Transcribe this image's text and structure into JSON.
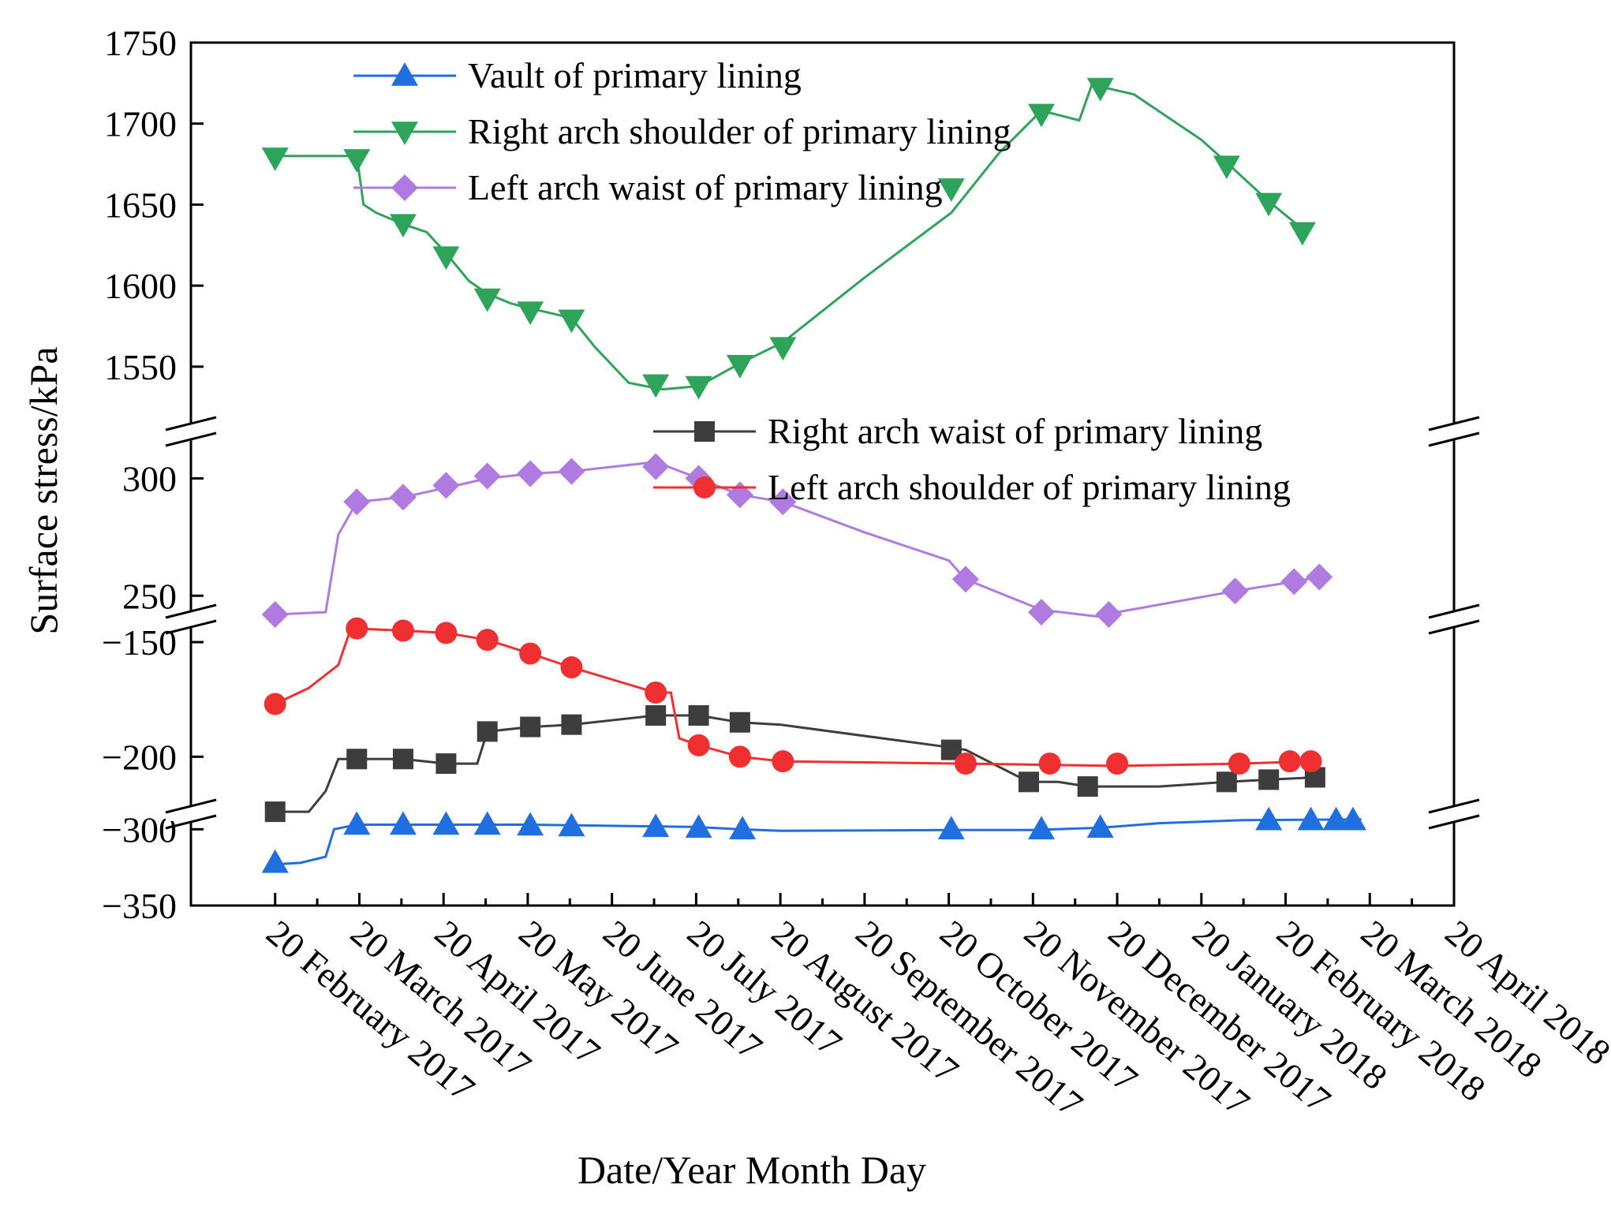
{
  "chart_data": {
    "type": "line",
    "title": "",
    "xlabel": "Date/Year Month Day",
    "ylabel": "Surface stress/kPa",
    "x_ticks": [
      "20 February 2017",
      "20 March 2017",
      "20 April 2017",
      "20 May 2017",
      "20 June 2017",
      "20 July 2017",
      "20 August 2017",
      "20 September 2017",
      "20 October 2017",
      "20 November 2017",
      "20 December 2017",
      "20 January 2018",
      "20 February 2018",
      "20 March 2018",
      "20 April 2018"
    ],
    "x_unit": "month index (0 = 20 February 2017)",
    "xlim": [
      -1,
      14
    ],
    "y_segments": [
      {
        "range": [
          -350,
          -290
        ],
        "ticks": [
          -350,
          -300
        ]
      },
      {
        "range": [
          -225,
          -140
        ],
        "ticks": [
          -200,
          -150
        ]
      },
      {
        "range": [
          240,
          320
        ],
        "ticks": [
          250,
          300
        ]
      },
      {
        "range": [
          1510,
          1750
        ],
        "ticks": [
          1550,
          1600,
          1650,
          1700,
          1750
        ]
      }
    ],
    "y_tick_labels": {
      "-350": "−350",
      "-300": "−300",
      "-200": "−200",
      "-150": "−150",
      "250": "250",
      "300": "300",
      "1550": "1550",
      "1600": "1600",
      "1650": "1650",
      "1700": "1700",
      "1750": "1750"
    },
    "series": [
      {
        "name": "Vault of primary lining",
        "color": "#1f6fe0",
        "marker": "triangle-up",
        "points": [
          [
            0,
            -322
          ],
          [
            0.97,
            -297
          ],
          [
            1.52,
            -297
          ],
          [
            2.03,
            -297
          ],
          [
            2.52,
            -297
          ],
          [
            3.03,
            -297.5
          ],
          [
            3.52,
            -298
          ],
          [
            4.52,
            -298.5
          ],
          [
            5.03,
            -299
          ],
          [
            5.55,
            -300
          ],
          [
            8.03,
            -300
          ],
          [
            9.1,
            -300
          ],
          [
            9.8,
            -299
          ],
          [
            11.8,
            -294
          ],
          [
            12.3,
            -294
          ],
          [
            12.6,
            -294
          ],
          [
            12.8,
            -294
          ]
        ],
        "line": [
          [
            0,
            -323
          ],
          [
            0.3,
            -322
          ],
          [
            0.6,
            -318
          ],
          [
            0.7,
            -300
          ],
          [
            0.97,
            -297
          ],
          [
            3,
            -297
          ],
          [
            5,
            -298.5
          ],
          [
            5.5,
            -300
          ],
          [
            6,
            -301
          ],
          [
            8,
            -300.5
          ],
          [
            9,
            -300.5
          ],
          [
            9.8,
            -299
          ],
          [
            10.5,
            -296
          ],
          [
            11.5,
            -294
          ],
          [
            12.9,
            -293.5
          ]
        ]
      },
      {
        "name": "Right arch shoulder of primary lining",
        "color": "#2ea35a",
        "marker": "triangle-down",
        "points": [
          [
            0,
            1679
          ],
          [
            0.97,
            1678
          ],
          [
            1.52,
            1638
          ],
          [
            2.03,
            1618
          ],
          [
            2.52,
            1592
          ],
          [
            3.03,
            1584
          ],
          [
            3.52,
            1579
          ],
          [
            4.52,
            1539
          ],
          [
            5.03,
            1538
          ],
          [
            5.52,
            1551
          ],
          [
            6.03,
            1562
          ],
          [
            8.03,
            1660
          ],
          [
            9.1,
            1706
          ],
          [
            9.8,
            1722
          ],
          [
            11.3,
            1674
          ],
          [
            11.8,
            1651
          ],
          [
            12.2,
            1633
          ]
        ],
        "line": [
          [
            0,
            1680
          ],
          [
            0.97,
            1680
          ],
          [
            1.05,
            1650
          ],
          [
            1.2,
            1645
          ],
          [
            1.52,
            1638
          ],
          [
            1.8,
            1633
          ],
          [
            2.03,
            1620
          ],
          [
            2.3,
            1603
          ],
          [
            2.52,
            1595
          ],
          [
            2.8,
            1589
          ],
          [
            3.03,
            1586
          ],
          [
            3.52,
            1580
          ],
          [
            3.8,
            1562
          ],
          [
            4.2,
            1540
          ],
          [
            4.6,
            1536
          ],
          [
            5.03,
            1538
          ],
          [
            5.52,
            1552
          ],
          [
            6.03,
            1565
          ],
          [
            7,
            1605
          ],
          [
            8.03,
            1645
          ],
          [
            8.6,
            1682
          ],
          [
            9.1,
            1708
          ],
          [
            9.55,
            1702
          ],
          [
            9.7,
            1724
          ],
          [
            10.2,
            1718
          ],
          [
            11,
            1690
          ],
          [
            11.3,
            1676
          ],
          [
            11.8,
            1652
          ],
          [
            12.2,
            1635
          ]
        ]
      },
      {
        "name": "Left arch waist of primary lining",
        "color": "#b07be0",
        "marker": "diamond",
        "points": [
          [
            0,
            242
          ],
          [
            0.97,
            290
          ],
          [
            1.52,
            292
          ],
          [
            2.03,
            297
          ],
          [
            2.52,
            301
          ],
          [
            3.03,
            302
          ],
          [
            3.52,
            303
          ],
          [
            4.52,
            305
          ],
          [
            5.03,
            300
          ],
          [
            5.52,
            293
          ],
          [
            6.03,
            290
          ],
          [
            8.2,
            257
          ],
          [
            9.1,
            243
          ],
          [
            9.9,
            242
          ],
          [
            11.4,
            252
          ],
          [
            12.1,
            256
          ],
          [
            12.4,
            258
          ]
        ],
        "line": [
          [
            0,
            242
          ],
          [
            0.6,
            243
          ],
          [
            0.75,
            276
          ],
          [
            0.97,
            290
          ],
          [
            1.52,
            292
          ],
          [
            2.03,
            296
          ],
          [
            2.52,
            300
          ],
          [
            3.03,
            302
          ],
          [
            3.52,
            303
          ],
          [
            4.52,
            307
          ],
          [
            5.03,
            300
          ],
          [
            5.52,
            293
          ],
          [
            6.03,
            290
          ],
          [
            7,
            277
          ],
          [
            8,
            265
          ],
          [
            8.2,
            257
          ],
          [
            9.1,
            244
          ],
          [
            9.8,
            241
          ],
          [
            10,
            243
          ],
          [
            11.4,
            252
          ],
          [
            12.1,
            256
          ],
          [
            12.4,
            258
          ]
        ]
      },
      {
        "name": "Right arch waist of primary lining",
        "color": "#3d3d3d",
        "marker": "square",
        "points": [
          [
            0,
            -224
          ],
          [
            0.97,
            -201
          ],
          [
            1.52,
            -201
          ],
          [
            2.03,
            -203
          ],
          [
            2.52,
            -189
          ],
          [
            3.03,
            -187
          ],
          [
            3.52,
            -186
          ],
          [
            4.52,
            -182
          ],
          [
            5.03,
            -182
          ],
          [
            5.52,
            -185
          ],
          [
            8.03,
            -197
          ],
          [
            8.95,
            -211
          ],
          [
            9.65,
            -213
          ],
          [
            11.3,
            -211
          ],
          [
            11.8,
            -210
          ],
          [
            12.35,
            -209
          ]
        ],
        "line": [
          [
            0,
            -224
          ],
          [
            0.4,
            -224
          ],
          [
            0.6,
            -215
          ],
          [
            0.75,
            -201
          ],
          [
            1.52,
            -201
          ],
          [
            2.03,
            -203
          ],
          [
            2.4,
            -203
          ],
          [
            2.52,
            -189
          ],
          [
            3.03,
            -187
          ],
          [
            3.52,
            -186
          ],
          [
            4.52,
            -182
          ],
          [
            5.03,
            -182
          ],
          [
            5.52,
            -185
          ],
          [
            6,
            -186
          ],
          [
            8.03,
            -196
          ],
          [
            8.2,
            -197
          ],
          [
            8.95,
            -211
          ],
          [
            9.3,
            -211
          ],
          [
            9.65,
            -213
          ],
          [
            10.5,
            -213
          ],
          [
            11.3,
            -211
          ],
          [
            11.8,
            -210
          ],
          [
            12.35,
            -209
          ]
        ]
      },
      {
        "name": "Left arch shoulder of primary lining",
        "color": "#f03030",
        "marker": "circle",
        "points": [
          [
            0,
            -177
          ],
          [
            0.97,
            -144
          ],
          [
            1.52,
            -145
          ],
          [
            2.03,
            -146
          ],
          [
            2.52,
            -149
          ],
          [
            3.03,
            -155
          ],
          [
            3.52,
            -161
          ],
          [
            4.52,
            -172
          ],
          [
            5.03,
            -195
          ],
          [
            5.52,
            -200
          ],
          [
            6.03,
            -202
          ],
          [
            8.2,
            -203
          ],
          [
            9.2,
            -203
          ],
          [
            10.0,
            -203
          ],
          [
            11.45,
            -203
          ],
          [
            12.05,
            -202
          ],
          [
            12.3,
            -202
          ]
        ],
        "line": [
          [
            0,
            -177
          ],
          [
            0.4,
            -170
          ],
          [
            0.75,
            -160
          ],
          [
            0.9,
            -144
          ],
          [
            1.52,
            -145
          ],
          [
            2.03,
            -146
          ],
          [
            2.52,
            -149
          ],
          [
            3.03,
            -155
          ],
          [
            3.52,
            -161
          ],
          [
            4.52,
            -172
          ],
          [
            4.7,
            -172
          ],
          [
            4.8,
            -192
          ],
          [
            5.03,
            -195
          ],
          [
            5.52,
            -200
          ],
          [
            6.03,
            -202
          ],
          [
            8.2,
            -203
          ],
          [
            10.0,
            -204
          ],
          [
            11.45,
            -203
          ],
          [
            12.3,
            -202
          ]
        ]
      }
    ],
    "legends": [
      {
        "position": "top-center",
        "items": [
          0,
          1,
          2
        ]
      },
      {
        "position": "center-right",
        "items": [
          3,
          4
        ]
      }
    ],
    "grid": false
  }
}
